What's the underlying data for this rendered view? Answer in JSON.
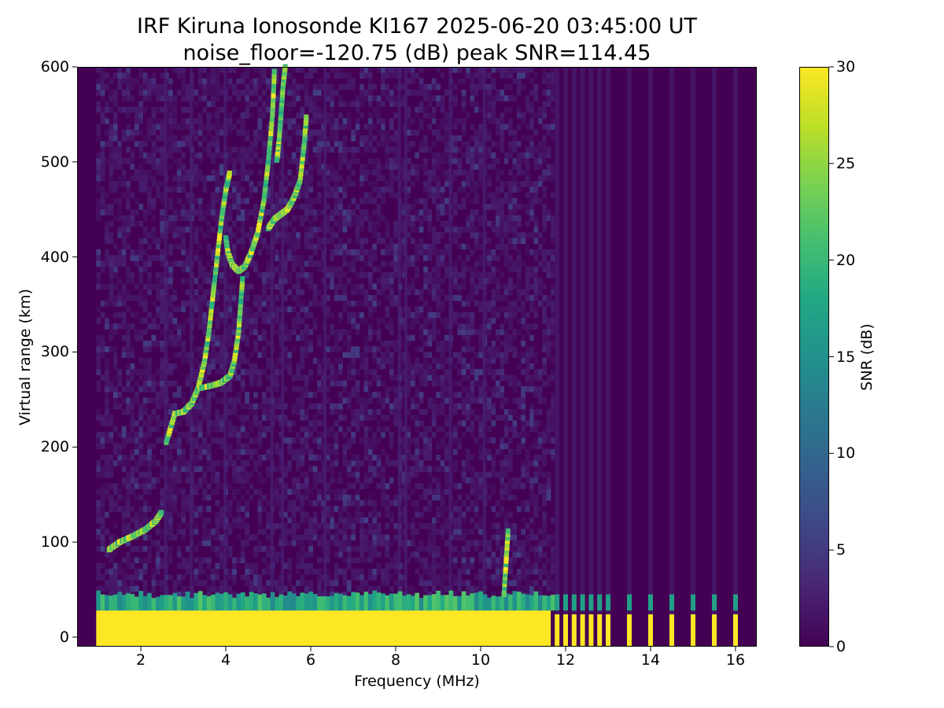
{
  "chart_data": {
    "type": "heatmap",
    "title": "IRF Kiruna Ionosonde KI167 2025-06-20 03:45:00  UT",
    "subtitle": "noise_floor=-120.75 (dB) peak SNR=114.45",
    "xlabel": "Frequency (MHz)",
    "ylabel": "Virtual range (km)",
    "xlim": [
      0.5,
      16.5
    ],
    "ylim": [
      -10,
      600
    ],
    "x_ticks": [
      "2",
      "4",
      "6",
      "8",
      "10",
      "12",
      "14",
      "16"
    ],
    "y_ticks": [
      "0",
      "100",
      "200",
      "300",
      "400",
      "500",
      "600"
    ],
    "colorbar": {
      "label": "SNR (dB)",
      "range": [
        0,
        30
      ],
      "ticks": [
        "0",
        "5",
        "10",
        "15",
        "20",
        "25",
        "30"
      ],
      "colormap": "viridis"
    },
    "sweep_start_mhz": 0.95,
    "continuous_sweep_end_mhz": 11.65,
    "ground_echo": {
      "range_km": [
        -10,
        28
      ],
      "snr_db": 30,
      "transition_top_km": 45
    },
    "sparse_channels_mhz": [
      11.8,
      12.0,
      12.2,
      12.4,
      12.6,
      12.8,
      13.0,
      13.5,
      14.0,
      14.5,
      15.0,
      15.5,
      16.0
    ],
    "traces": [
      {
        "name": "",
        "points": [
          [
            1.25,
            92
          ],
          [
            1.5,
            100
          ],
          [
            1.8,
            106
          ],
          [
            2.1,
            113
          ],
          [
            2.35,
            122
          ],
          [
            2.5,
            132
          ]
        ]
      },
      {
        "name": "",
        "points": [
          [
            2.6,
            205
          ],
          [
            2.8,
            235
          ],
          [
            3.0,
            237
          ],
          [
            3.2,
            246
          ],
          [
            3.35,
            262
          ],
          [
            3.5,
            290
          ],
          [
            3.6,
            320
          ],
          [
            3.7,
            360
          ],
          [
            3.8,
            400
          ],
          [
            3.9,
            440
          ],
          [
            4.0,
            470
          ],
          [
            4.1,
            490
          ]
        ]
      },
      {
        "name": "",
        "points": [
          [
            3.4,
            262
          ],
          [
            3.7,
            265
          ],
          [
            3.9,
            268
          ],
          [
            4.1,
            275
          ],
          [
            4.2,
            290
          ],
          [
            4.3,
            320
          ],
          [
            4.35,
            350
          ],
          [
            4.4,
            380
          ]
        ]
      },
      {
        "name": "",
        "points": [
          [
            4.0,
            420
          ],
          [
            4.05,
            405
          ],
          [
            4.15,
            392
          ],
          [
            4.3,
            385
          ],
          [
            4.45,
            390
          ],
          [
            4.6,
            405
          ],
          [
            4.75,
            425
          ],
          [
            4.9,
            460
          ],
          [
            5.0,
            500
          ],
          [
            5.1,
            550
          ],
          [
            5.15,
            600
          ]
        ]
      },
      {
        "name": "",
        "points": [
          [
            5.0,
            430
          ],
          [
            5.15,
            440
          ],
          [
            5.3,
            445
          ],
          [
            5.45,
            450
          ],
          [
            5.6,
            462
          ],
          [
            5.75,
            480
          ],
          [
            5.85,
            520
          ],
          [
            5.9,
            550
          ]
        ]
      },
      {
        "name": "",
        "points": [
          [
            5.4,
            600
          ],
          [
            5.35,
            580
          ],
          [
            5.3,
            550
          ],
          [
            5.25,
            520
          ],
          [
            5.2,
            500
          ]
        ]
      },
      {
        "name": "",
        "points": [
          [
            10.55,
            45
          ],
          [
            10.6,
            80
          ],
          [
            10.65,
            115
          ]
        ]
      }
    ],
    "colors": {
      "low": "#440154",
      "high": "#fde725"
    }
  }
}
